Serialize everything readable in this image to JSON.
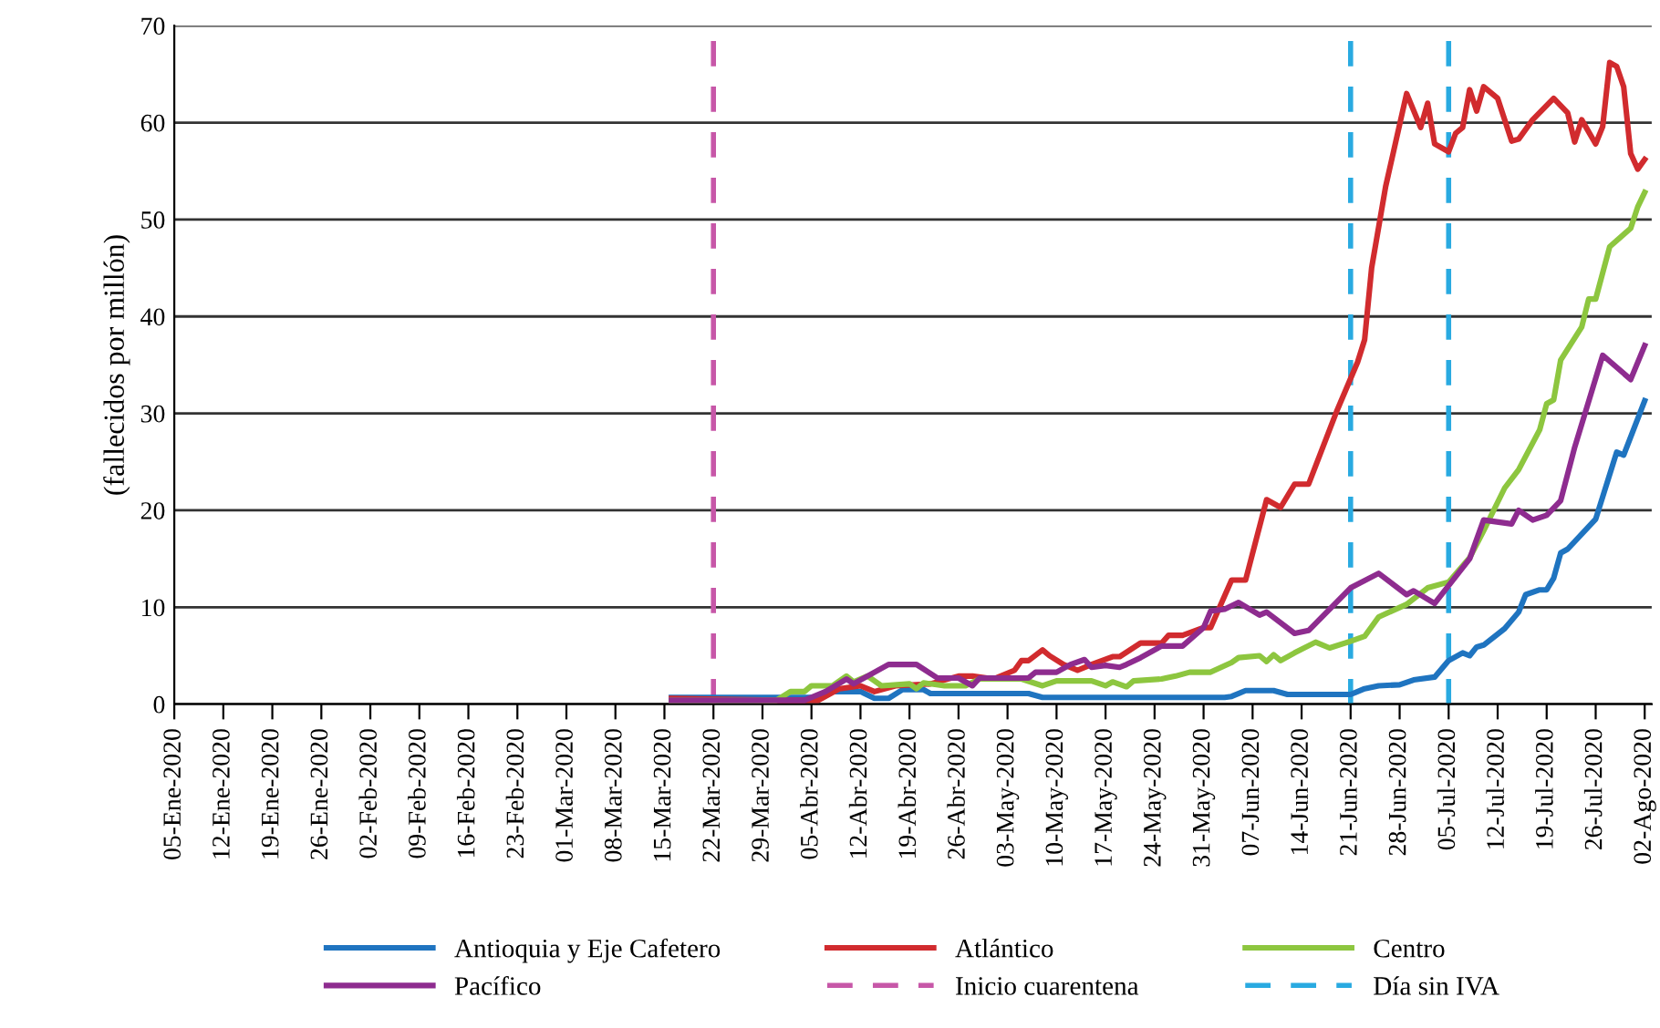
{
  "chart_data": {
    "type": "line",
    "ylabel": "(fallecidos por millón)",
    "xlim": [
      "2020-01-05",
      "2020-08-03"
    ],
    "ylim": [
      0,
      70
    ],
    "yticks": [
      0,
      10,
      20,
      30,
      40,
      50,
      60,
      70
    ],
    "xticks": [
      {
        "value": "2020-01-05",
        "label": "05-Ene-2020"
      },
      {
        "value": "2020-01-12",
        "label": "12-Ene-2020"
      },
      {
        "value": "2020-01-19",
        "label": "19-Ene-2020"
      },
      {
        "value": "2020-01-26",
        "label": "26-Ene-2020"
      },
      {
        "value": "2020-02-02",
        "label": "02-Feb-2020"
      },
      {
        "value": "2020-02-09",
        "label": "09-Feb-2020"
      },
      {
        "value": "2020-02-16",
        "label": "16-Feb-2020"
      },
      {
        "value": "2020-02-23",
        "label": "23-Feb-2020"
      },
      {
        "value": "2020-03-01",
        "label": "01-Mar-2020"
      },
      {
        "value": "2020-03-08",
        "label": "08-Mar-2020"
      },
      {
        "value": "2020-03-15",
        "label": "15-Mar-2020"
      },
      {
        "value": "2020-03-22",
        "label": "22-Mar-2020"
      },
      {
        "value": "2020-03-29",
        "label": "29-Mar-2020"
      },
      {
        "value": "2020-04-05",
        "label": "05-Abr-2020"
      },
      {
        "value": "2020-04-12",
        "label": "12-Abr-2020"
      },
      {
        "value": "2020-04-19",
        "label": "19-Abr-2020"
      },
      {
        "value": "2020-04-26",
        "label": "26-Abr-2020"
      },
      {
        "value": "2020-05-03",
        "label": "03-May-2020"
      },
      {
        "value": "2020-05-10",
        "label": "10-May-2020"
      },
      {
        "value": "2020-05-17",
        "label": "17-May-2020"
      },
      {
        "value": "2020-05-24",
        "label": "24-May-2020"
      },
      {
        "value": "2020-05-31",
        "label": "31-May-2020"
      },
      {
        "value": "2020-06-07",
        "label": "07-Jun-2020"
      },
      {
        "value": "2020-06-14",
        "label": "14-Jun-2020"
      },
      {
        "value": "2020-06-21",
        "label": "21-Jun-2020"
      },
      {
        "value": "2020-06-28",
        "label": "28-Jun-2020"
      },
      {
        "value": "2020-07-05",
        "label": "05-Jul-2020"
      },
      {
        "value": "2020-07-12",
        "label": "12-Jul-2020"
      },
      {
        "value": "2020-07-19",
        "label": "19-Jul-2020"
      },
      {
        "value": "2020-07-26",
        "label": "26-Jul-2020"
      },
      {
        "value": "2020-08-02",
        "label": "02-Ago-2020"
      }
    ],
    "grid": "y",
    "legend": "bottom",
    "line_style": "solid",
    "marker": "none",
    "series": [
      {
        "name": "Antioquia y Eje Cafetero",
        "color": "#1f74c0",
        "x": [
          "2020-03-16",
          "2020-04-06",
          "2020-04-08",
          "2020-04-12",
          "2020-04-14",
          "2020-04-16",
          "2020-04-18",
          "2020-04-21",
          "2020-04-22",
          "2020-05-06",
          "2020-05-08",
          "2020-06-03",
          "2020-06-04",
          "2020-06-06",
          "2020-06-10",
          "2020-06-12",
          "2020-06-21",
          "2020-06-23",
          "2020-06-25",
          "2020-06-28",
          "2020-06-30",
          "2020-07-03",
          "2020-07-05",
          "2020-07-07",
          "2020-07-08",
          "2020-07-09",
          "2020-07-10",
          "2020-07-13",
          "2020-07-15",
          "2020-07-16",
          "2020-07-18",
          "2020-07-19",
          "2020-07-20",
          "2020-07-21",
          "2020-07-22",
          "2020-07-26",
          "2020-07-29",
          "2020-07-30",
          "2020-08-02"
        ],
        "values": [
          0.7,
          0.7,
          1.3,
          1.3,
          0.6,
          0.6,
          1.5,
          1.5,
          1.1,
          1.1,
          0.7,
          0.7,
          0.8,
          1.4,
          1.4,
          1.0,
          1.0,
          1.6,
          1.9,
          2.0,
          2.5,
          2.8,
          4.5,
          5.3,
          5.0,
          5.9,
          6.1,
          7.8,
          9.5,
          11.3,
          11.8,
          11.8,
          13.0,
          15.6,
          16.0,
          19.1,
          26.0,
          25.7,
          31.3
        ]
      },
      {
        "name": "Atlántico",
        "color": "#d12b2e",
        "x": [
          "2020-03-16",
          "2020-03-31",
          "2020-04-06",
          "2020-04-09",
          "2020-04-12",
          "2020-04-14",
          "2020-04-17",
          "2020-04-22",
          "2020-04-26",
          "2020-04-28",
          "2020-05-01",
          "2020-05-04",
          "2020-05-05",
          "2020-05-06",
          "2020-05-08",
          "2020-05-09",
          "2020-05-11",
          "2020-05-13",
          "2020-05-15",
          "2020-05-18",
          "2020-05-19",
          "2020-05-22",
          "2020-05-25",
          "2020-05-26",
          "2020-05-28",
          "2020-05-31",
          "2020-06-01",
          "2020-06-04",
          "2020-06-06",
          "2020-06-09",
          "2020-06-11",
          "2020-06-13",
          "2020-06-15",
          "2020-06-19",
          "2020-06-22",
          "2020-06-23",
          "2020-06-24",
          "2020-06-26",
          "2020-06-29",
          "2020-07-01",
          "2020-07-02",
          "2020-07-03",
          "2020-07-05",
          "2020-07-06",
          "2020-07-07",
          "2020-07-08",
          "2020-07-09",
          "2020-07-10",
          "2020-07-12",
          "2020-07-14",
          "2020-07-15",
          "2020-07-17",
          "2020-07-20",
          "2020-07-22",
          "2020-07-23",
          "2020-07-24",
          "2020-07-26",
          "2020-07-27",
          "2020-07-28",
          "2020-07-29",
          "2020-07-30",
          "2020-07-31",
          "2020-08-01",
          "2020-08-02"
        ],
        "values": [
          0.6,
          0.4,
          0.4,
          1.6,
          1.9,
          1.3,
          1.9,
          2.1,
          2.9,
          2.9,
          2.6,
          3.5,
          4.5,
          4.5,
          5.6,
          5.0,
          4.1,
          3.5,
          4.1,
          4.9,
          4.9,
          6.3,
          6.3,
          7.1,
          7.1,
          7.9,
          7.9,
          12.8,
          12.8,
          21.1,
          20.3,
          22.7,
          22.7,
          30.2,
          35.3,
          37.6,
          45,
          53.4,
          63,
          59.5,
          62,
          57.8,
          57,
          58.9,
          59.5,
          63.4,
          61.2,
          63.7,
          62.5,
          58.1,
          58.3,
          60.3,
          62.5,
          61,
          58,
          60.3,
          57.8,
          59.6,
          66.2,
          65.8,
          63.7,
          56.8,
          55.2,
          56.2
        ]
      },
      {
        "name": "Centro",
        "color": "#8dc63f",
        "x": [
          "2020-03-16",
          "2020-03-31",
          "2020-04-02",
          "2020-04-04",
          "2020-04-05",
          "2020-04-08",
          "2020-04-10",
          "2020-04-11",
          "2020-04-13",
          "2020-04-15",
          "2020-04-19",
          "2020-04-20",
          "2020-04-21",
          "2020-04-24",
          "2020-04-27",
          "2020-04-29",
          "2020-05-05",
          "2020-05-08",
          "2020-05-10",
          "2020-05-15",
          "2020-05-17",
          "2020-05-18",
          "2020-05-20",
          "2020-05-21",
          "2020-05-25",
          "2020-05-27",
          "2020-05-29",
          "2020-06-01",
          "2020-06-04",
          "2020-06-05",
          "2020-06-08",
          "2020-06-09",
          "2020-06-10",
          "2020-06-11",
          "2020-06-13",
          "2020-06-16",
          "2020-06-18",
          "2020-06-21",
          "2020-06-23",
          "2020-06-25",
          "2020-06-29",
          "2020-07-02",
          "2020-07-05",
          "2020-07-08",
          "2020-07-10",
          "2020-07-13",
          "2020-07-15",
          "2020-07-18",
          "2020-07-19",
          "2020-07-20",
          "2020-07-21",
          "2020-07-24",
          "2020-07-25",
          "2020-07-26",
          "2020-07-28",
          "2020-07-31",
          "2020-08-01",
          "2020-08-02"
        ],
        "values": [
          0.4,
          0.4,
          1.3,
          1.3,
          1.9,
          1.9,
          2.9,
          2.3,
          2.9,
          1.9,
          2.1,
          1.6,
          2.2,
          1.9,
          1.9,
          2.6,
          2.6,
          1.9,
          2.4,
          2.4,
          1.9,
          2.3,
          1.8,
          2.4,
          2.6,
          2.9,
          3.3,
          3.3,
          4.3,
          4.8,
          5.0,
          4.4,
          5.1,
          4.5,
          5.3,
          6.4,
          5.8,
          6.5,
          7.0,
          9.0,
          10.3,
          12,
          12.6,
          15.1,
          17.9,
          22.3,
          24.2,
          28.3,
          31,
          31.4,
          35.5,
          38.9,
          41.8,
          41.8,
          47.2,
          49.1,
          51.3,
          52.8
        ]
      },
      {
        "name": "Pacífico",
        "color": "#8e2c8f",
        "x": [
          "2020-03-16",
          "2020-04-04",
          "2020-04-07",
          "2020-04-10",
          "2020-04-11",
          "2020-04-16",
          "2020-04-20",
          "2020-04-23",
          "2020-04-26",
          "2020-04-28",
          "2020-04-29",
          "2020-05-06",
          "2020-05-07",
          "2020-05-10",
          "2020-05-12",
          "2020-05-14",
          "2020-05-15",
          "2020-05-17",
          "2020-05-19",
          "2020-05-20",
          "2020-05-22",
          "2020-05-25",
          "2020-05-28",
          "2020-05-31",
          "2020-06-01",
          "2020-06-03",
          "2020-06-05",
          "2020-06-08",
          "2020-06-09",
          "2020-06-13",
          "2020-06-15",
          "2020-06-21",
          "2020-06-25",
          "2020-06-29",
          "2020-06-30",
          "2020-07-03",
          "2020-07-08",
          "2020-07-10",
          "2020-07-14",
          "2020-07-15",
          "2020-07-17",
          "2020-07-19",
          "2020-07-21",
          "2020-07-23",
          "2020-07-27",
          "2020-07-31",
          "2020-08-02"
        ],
        "values": [
          0.4,
          0.4,
          1.3,
          2.6,
          2.1,
          4.1,
          4.1,
          2.7,
          2.7,
          1.9,
          2.7,
          2.7,
          3.3,
          3.3,
          4.1,
          4.6,
          3.8,
          4.0,
          3.8,
          4.1,
          4.8,
          6.0,
          6.0,
          7.9,
          9.6,
          9.8,
          10.5,
          9.2,
          9.5,
          7.3,
          7.6,
          12,
          13.5,
          11.3,
          11.7,
          10.4,
          15,
          19,
          18.6,
          20,
          19,
          19.5,
          21,
          26.5,
          36,
          33.5,
          37
        ]
      }
    ],
    "ref_lines": [
      {
        "axis": "x",
        "value": "2020-03-22",
        "label": "Inicio cuarentena",
        "color": "#c757a8",
        "line_style": "dashed"
      },
      {
        "axis": "x",
        "value": "2020-06-21",
        "label": "Día sin IVA",
        "color": "#29aae1",
        "line_style": "dashed"
      },
      {
        "axis": "x",
        "value": "2020-07-05",
        "color": "#29aae1",
        "line_style": "dashed"
      }
    ]
  }
}
